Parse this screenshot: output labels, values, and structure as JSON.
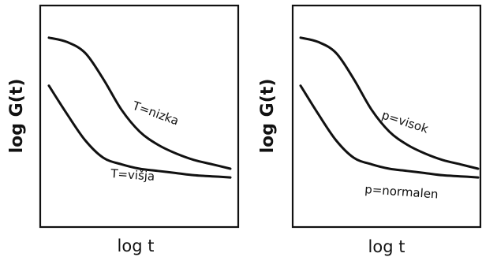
{
  "chart_data": [
    {
      "type": "line",
      "panel": "left",
      "xlabel": "log t",
      "ylabel": "log G(t)",
      "grid": false,
      "ylim": [
        0,
        1
      ],
      "x": [
        0,
        0.1,
        0.2,
        0.3,
        0.4,
        0.5,
        0.6,
        0.7,
        0.8,
        0.9,
        1
      ],
      "series": [
        {
          "name": "T=nizka",
          "values": [
            0.86,
            0.84,
            0.79,
            0.67,
            0.53,
            0.43,
            0.37,
            0.33,
            0.3,
            0.28,
            0.26
          ]
        },
        {
          "name": "T=višja",
          "values": [
            0.64,
            0.51,
            0.39,
            0.31,
            0.28,
            0.26,
            0.25,
            0.24,
            0.23,
            0.225,
            0.22
          ]
        }
      ]
    },
    {
      "type": "line",
      "panel": "right",
      "xlabel": "log t",
      "ylabel": "log G(t)",
      "grid": false,
      "ylim": [
        0,
        1
      ],
      "x": [
        0,
        0.1,
        0.2,
        0.3,
        0.4,
        0.5,
        0.6,
        0.7,
        0.8,
        0.9,
        1
      ],
      "series": [
        {
          "name": "p=visok",
          "values": [
            0.86,
            0.84,
            0.79,
            0.67,
            0.53,
            0.43,
            0.37,
            0.33,
            0.3,
            0.28,
            0.26
          ]
        },
        {
          "name": "p=normalen",
          "values": [
            0.64,
            0.51,
            0.39,
            0.31,
            0.28,
            0.26,
            0.25,
            0.24,
            0.23,
            0.225,
            0.22
          ]
        }
      ]
    }
  ]
}
